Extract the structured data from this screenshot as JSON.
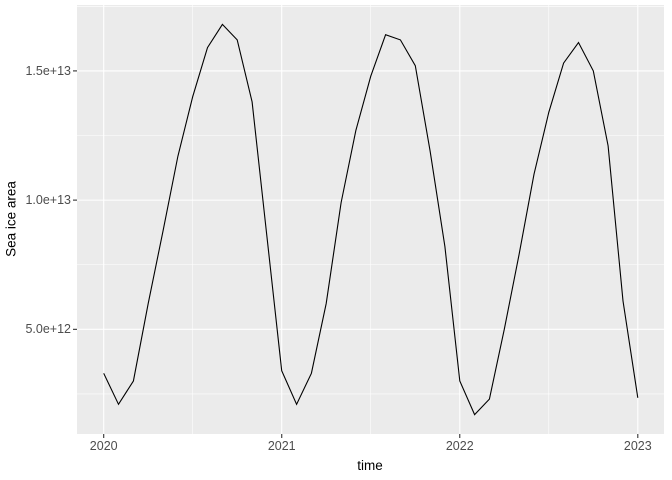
{
  "figure": {
    "background": "#FFFFFF",
    "panel_background": "#EBEBEB",
    "grid_color": "#FFFFFF",
    "line_color": "#000000",
    "tick_mark_color": "#333333",
    "tick_label_color": "#4D4D4D",
    "axis_title_color": "#000000"
  },
  "chart_data": {
    "type": "line",
    "title": "",
    "xlabel": "time",
    "ylabel": "Sea ice area",
    "legend": "none",
    "grid": "on",
    "x_tick_labels": [
      "2020",
      "2021",
      "2022",
      "2023"
    ],
    "x_tick_values": [
      2020,
      2021,
      2022,
      2023
    ],
    "y_tick_labels": [
      "5.0e+12",
      "1.0e+13",
      "1.5e+13"
    ],
    "y_tick_values": [
      5000000000000.0,
      10000000000000.0,
      15000000000000.0
    ],
    "x_minor_values": [
      2020.5,
      2021.5,
      2022.5
    ],
    "y_minor_values": [
      2500000000000.0,
      7500000000000.0,
      12500000000000.0,
      17500000000000.0
    ],
    "xlim": [
      2019.85,
      2023.15
    ],
    "ylim": [
      950000000000.0,
      17550000000000.0
    ],
    "series": [
      {
        "name": "Sea ice area",
        "x": [
          2020.0,
          2020.0833,
          2020.1667,
          2020.25,
          2020.3333,
          2020.4167,
          2020.5,
          2020.5833,
          2020.6667,
          2020.75,
          2020.8333,
          2020.9167,
          2021.0,
          2021.0833,
          2021.1667,
          2021.25,
          2021.3333,
          2021.4167,
          2021.5,
          2021.5833,
          2021.6667,
          2021.75,
          2021.8333,
          2021.9167,
          2022.0,
          2022.0833,
          2022.1667,
          2022.25,
          2022.3333,
          2022.4167,
          2022.5,
          2022.5833,
          2022.6667,
          2022.75,
          2022.8333,
          2022.9167,
          2023.0
        ],
        "y": [
          3300000000000.0,
          2100000000000.0,
          3000000000000.0,
          6000000000000.0,
          8800000000000.0,
          11700000000000.0,
          14000000000000.0,
          15900000000000.0,
          16800000000000.0,
          16200000000000.0,
          13800000000000.0,
          8600000000000.0,
          3400000000000.0,
          2100000000000.0,
          3300000000000.0,
          6000000000000.0,
          9900000000000.0,
          12700000000000.0,
          14800000000000.0,
          16400000000000.0,
          16200000000000.0,
          15200000000000.0,
          11900000000000.0,
          8200000000000.0,
          3000000000000.0,
          1700000000000.0,
          2300000000000.0,
          5000000000000.0,
          7900000000000.0,
          11000000000000.0,
          13400000000000.0,
          15300000000000.0,
          16100000000000.0,
          15000000000000.0,
          12100000000000.0,
          6100000000000.0,
          2350000000000.0
        ]
      }
    ]
  }
}
